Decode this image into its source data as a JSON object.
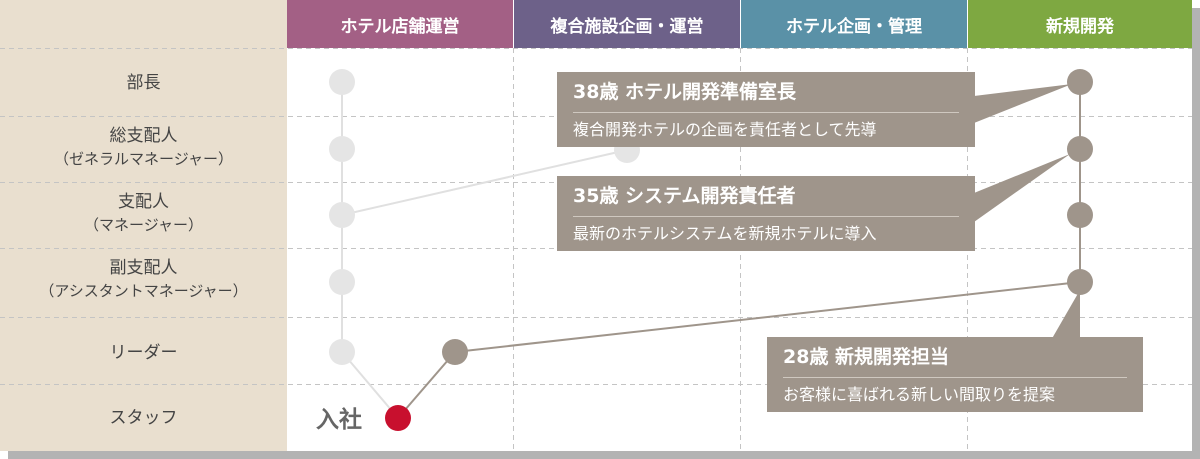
{
  "columns": [
    {
      "label": "ホテル店舗運営",
      "color": "#a36085"
    },
    {
      "label": "複合施設企画・運営",
      "color": "#6d6189"
    },
    {
      "label": "ホテル企画・管理",
      "color": "#5a91a7"
    },
    {
      "label": "新規開発",
      "color": "#7ea841"
    }
  ],
  "rows": [
    {
      "label": "部長",
      "sub": ""
    },
    {
      "label": "総支配人",
      "sub": "（ゼネラルマネージャー）"
    },
    {
      "label": "支配人",
      "sub": "（マネージャー）"
    },
    {
      "label": "副支配人",
      "sub": "（アシスタントマネージャー）"
    },
    {
      "label": "リーダー",
      "sub": ""
    },
    {
      "label": "スタッフ",
      "sub": ""
    }
  ],
  "entry_label": "入社",
  "callouts": [
    {
      "title": "38歳 ホテル開発準備室長",
      "desc": "複合開発ホテルの企画を責任者として先導"
    },
    {
      "title": "35歳 システム開発責任者",
      "desc": "最新のホテルシステムを新規ホテルに導入"
    },
    {
      "title": "28歳 新規開発担当",
      "desc": "お客様に喜ばれる新しい間取りを提案"
    }
  ],
  "colors": {
    "row_label_bg": "#e9dfcf",
    "active_path": "#9f958b",
    "inactive_node": "#e5e5e5",
    "entry_node": "#c8102e"
  }
}
